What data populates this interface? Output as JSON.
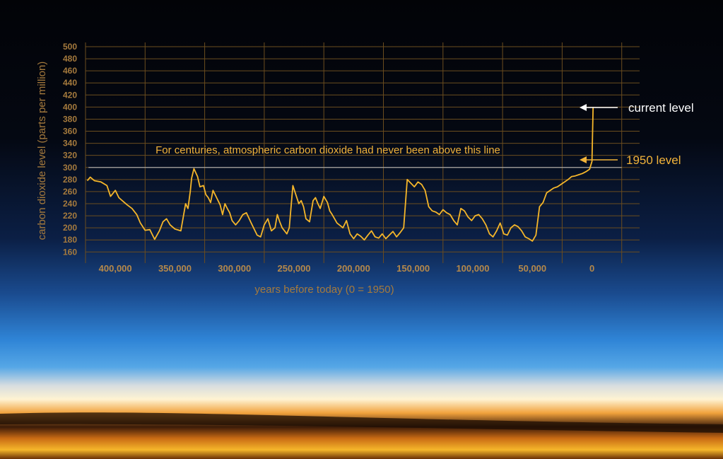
{
  "colors": {
    "line": "#f5b62a",
    "grid": "#6b4d1f",
    "tick_text": "#a57a3d",
    "annotation": "#f2b33a",
    "current_level": "#ffffff",
    "threshold_line": "#a8a8a8"
  },
  "chart_data": {
    "type": "line",
    "xlabel": "years before today (0 = 1950)",
    "ylabel": "carbon dioxide level (parts per million)",
    "xlim": [
      425000,
      -40000
    ],
    "ylim": [
      155,
      510
    ],
    "x_ticks": [
      400000,
      350000,
      300000,
      250000,
      200000,
      150000,
      100000,
      50000,
      0
    ],
    "x_tick_labels": [
      "400,000",
      "350,000",
      "300,000",
      "250,000",
      "200,000",
      "150,000",
      "100,000",
      "50,000",
      "0"
    ],
    "y_ticks": [
      160,
      180,
      200,
      220,
      240,
      260,
      280,
      300,
      320,
      340,
      360,
      380,
      400,
      420,
      440,
      460,
      480,
      500
    ],
    "y_tick_labels": [
      "160",
      "180",
      "200",
      "220",
      "240",
      "260",
      "280",
      "300",
      "320",
      "340",
      "360",
      "380",
      "400",
      "420",
      "440",
      "460",
      "480",
      "500"
    ],
    "grid": true,
    "x_gridlines": [
      425000,
      375000,
      325000,
      275000,
      225000,
      175000,
      125000,
      75000,
      25000,
      -25000
    ],
    "threshold": {
      "y": 300,
      "label": "For centuries, atmospheric carbon dioxide had never been above this line"
    },
    "annotations": [
      {
        "text": "current level",
        "y": 400
      },
      {
        "text": "1950 level",
        "y": 310
      }
    ],
    "series": [
      {
        "x": [
          423500,
          421000,
          417500,
          412000,
          407000,
          404000,
          400000,
          397000,
          393000,
          390000,
          386000,
          382000,
          379000,
          375000,
          371000,
          367000,
          363000,
          360000,
          357000,
          354000,
          350000,
          345000,
          341000,
          339000,
          337000,
          336000,
          334000,
          331000,
          329000,
          326000,
          324000,
          322000,
          320000,
          318000,
          315000,
          312000,
          310000,
          308000,
          306000,
          304000,
          302000,
          299000,
          296000,
          293000,
          290000,
          286000,
          281000,
          278000,
          275000,
          272000,
          269000,
          266000,
          264000,
          262000,
          260000,
          258000,
          256000,
          254000,
          251000,
          248000,
          246000,
          244000,
          242000,
          240000,
          237000,
          234000,
          232000,
          230000,
          228000,
          225000,
          222000,
          220000,
          218000,
          216000,
          214000,
          212000,
          209000,
          206000,
          203000,
          200000,
          197000,
          194000,
          191000,
          188000,
          185000,
          182000,
          179000,
          176000,
          173000,
          170000,
          167000,
          164000,
          161000,
          158000,
          155000,
          152000,
          149000,
          146000,
          143000,
          140000,
          137000,
          134000,
          131000,
          128000,
          125000,
          122000,
          119000,
          116000,
          113000,
          110000,
          107000,
          104000,
          101000,
          98000,
          95000,
          92000,
          89000,
          86000,
          83000,
          80000,
          77000,
          74000,
          71000,
          68000,
          65000,
          62000,
          59000,
          56000,
          53000,
          50000,
          47000,
          44000,
          41000,
          38000,
          35000,
          32000,
          29000,
          26000,
          23000,
          20000,
          17000,
          14000,
          11000,
          8000,
          5000,
          2000,
          0,
          -1000,
          -1000
        ],
        "values": [
          278,
          284,
          278,
          276,
          270,
          252,
          262,
          250,
          243,
          238,
          232,
          222,
          208,
          196,
          197,
          181,
          195,
          210,
          215,
          205,
          198,
          195,
          240,
          232,
          262,
          282,
          298,
          285,
          268,
          270,
          255,
          250,
          242,
          262,
          250,
          238,
          222,
          240,
          232,
          225,
          212,
          205,
          212,
          222,
          225,
          208,
          188,
          185,
          205,
          215,
          195,
          200,
          222,
          210,
          200,
          195,
          190,
          200,
          270,
          252,
          240,
          245,
          235,
          215,
          210,
          245,
          250,
          240,
          232,
          252,
          242,
          228,
          222,
          215,
          208,
          205,
          200,
          212,
          190,
          182,
          190,
          186,
          180,
          188,
          195,
          185,
          183,
          190,
          182,
          188,
          194,
          185,
          192,
          200,
          280,
          274,
          268,
          276,
          272,
          262,
          235,
          228,
          226,
          222,
          230,
          225,
          222,
          212,
          205,
          232,
          228,
          218,
          212,
          220,
          222,
          215,
          205,
          190,
          185,
          195,
          208,
          190,
          188,
          200,
          205,
          202,
          195,
          185,
          182,
          178,
          188,
          235,
          242,
          258,
          262,
          266,
          268,
          272,
          276,
          280,
          285,
          286,
          288,
          290,
          293,
          297,
          310,
          400,
          400
        ]
      }
    ]
  }
}
